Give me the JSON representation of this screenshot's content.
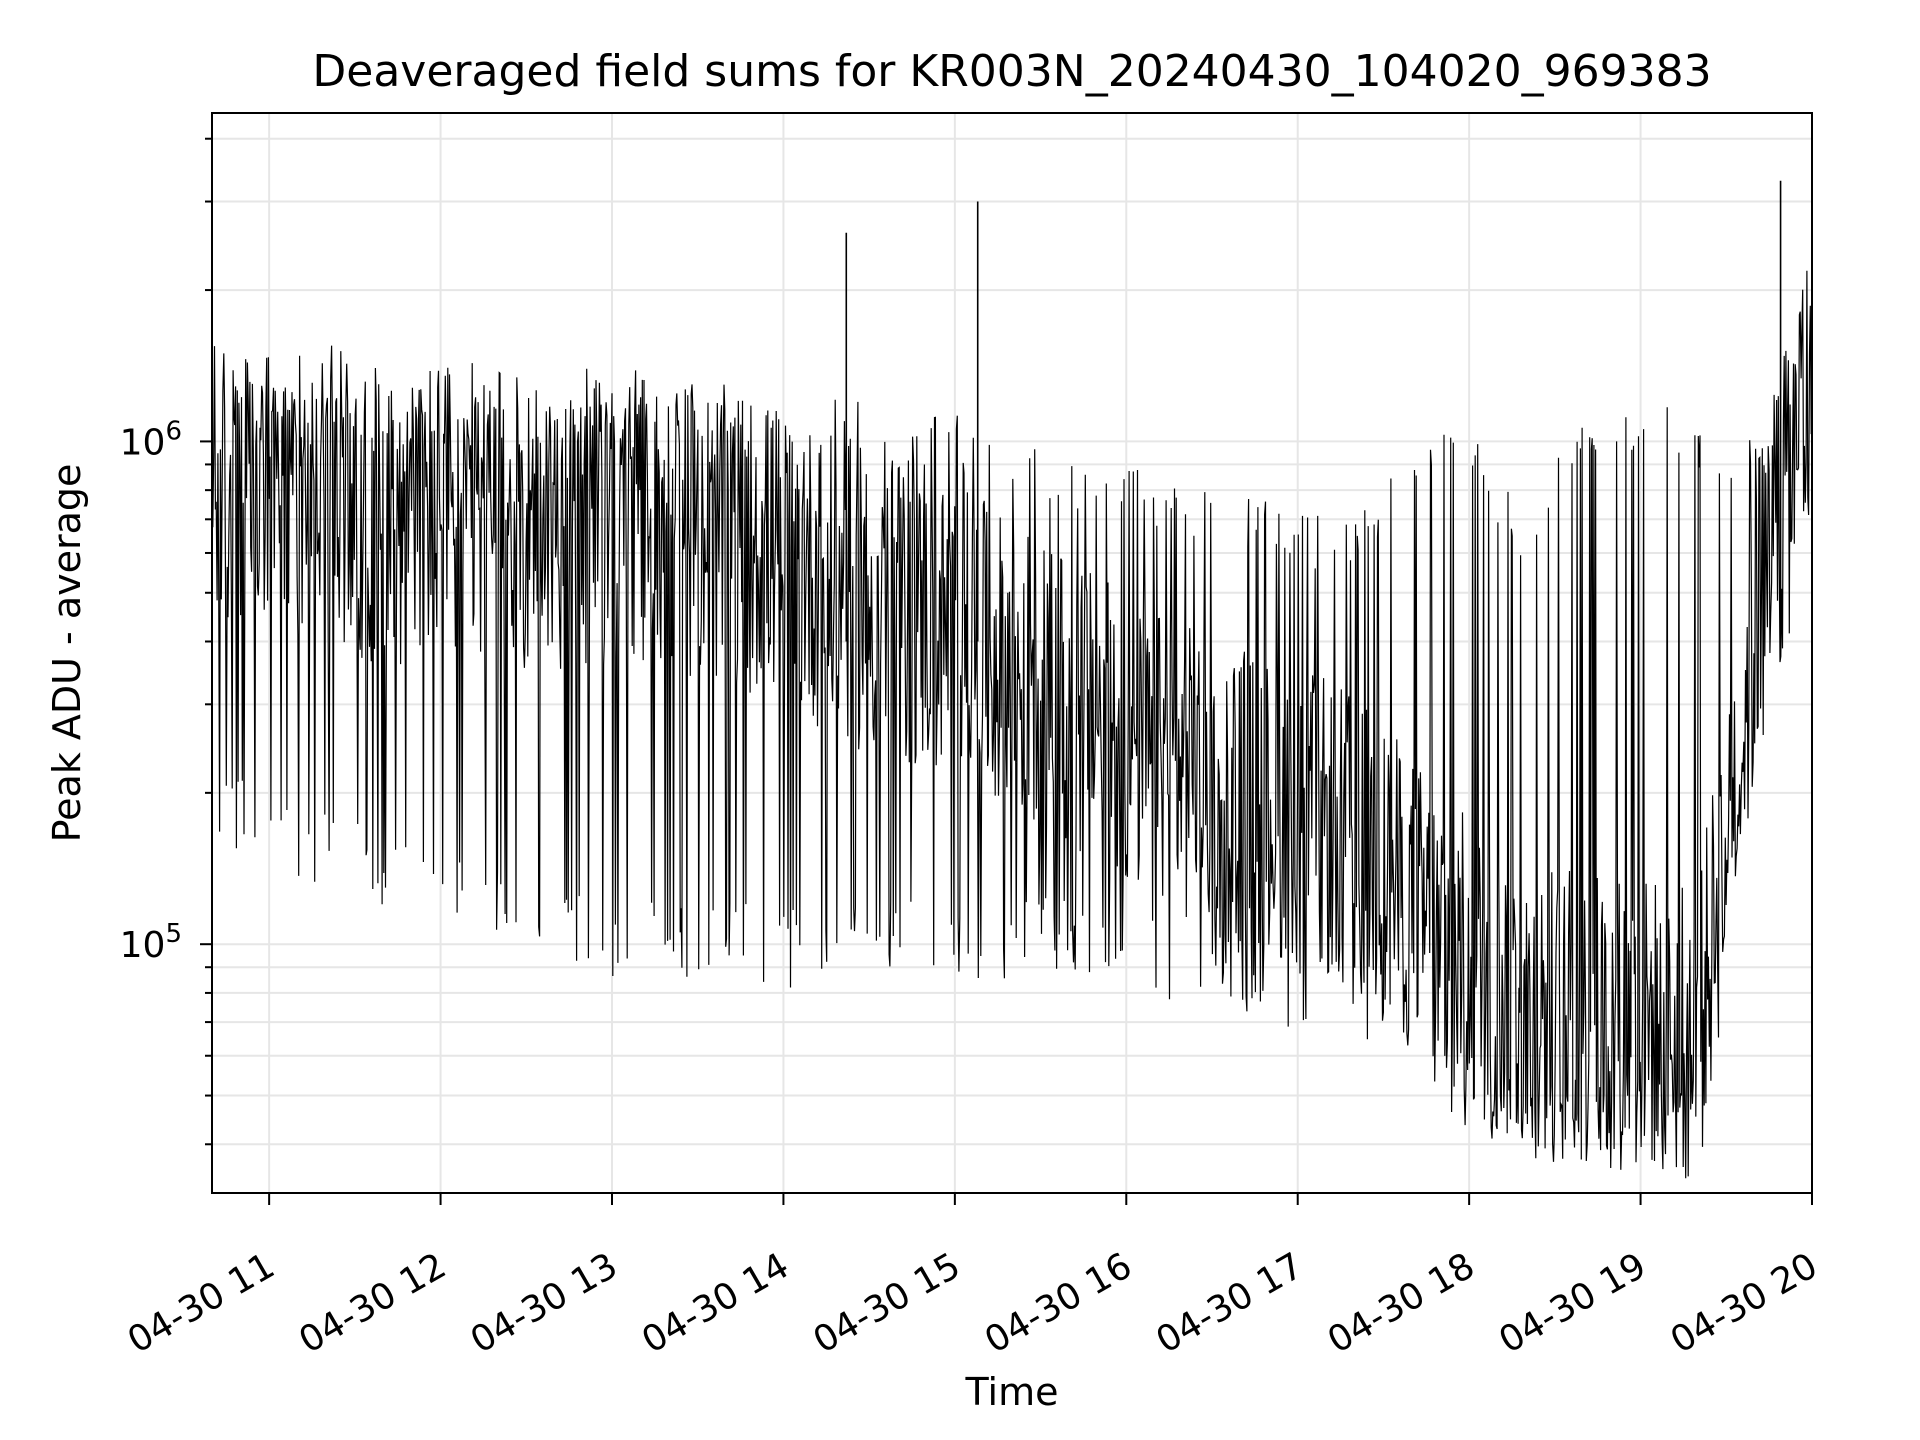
{
  "chart_data": {
    "type": "line",
    "title": "Deaveraged field sums for KR003N_20240430_104020_969383",
    "xlabel": "Time",
    "ylabel": "Peak ADU - average",
    "x_scale": "time",
    "y_scale": "log",
    "xlim": [
      "2024-04-30T10:40",
      "2024-04-30T20:00"
    ],
    "ylim": [
      32000,
      4500000
    ],
    "x_ticks": [
      {
        "t": "2024-04-30T11:00",
        "label": "04-30 11"
      },
      {
        "t": "2024-04-30T12:00",
        "label": "04-30 12"
      },
      {
        "t": "2024-04-30T13:00",
        "label": "04-30 13"
      },
      {
        "t": "2024-04-30T14:00",
        "label": "04-30 14"
      },
      {
        "t": "2024-04-30T15:00",
        "label": "04-30 15"
      },
      {
        "t": "2024-04-30T16:00",
        "label": "04-30 16"
      },
      {
        "t": "2024-04-30T17:00",
        "label": "04-30 17"
      },
      {
        "t": "2024-04-30T18:00",
        "label": "04-30 18"
      },
      {
        "t": "2024-04-30T19:00",
        "label": "04-30 19"
      },
      {
        "t": "2024-04-30T20:00",
        "label": "04-30 20"
      }
    ],
    "y_ticks": [
      {
        "value": 100000,
        "base": "10",
        "exp": "5"
      },
      {
        "value": 1000000,
        "base": "10",
        "exp": "6"
      }
    ],
    "grid": true,
    "line_color": "#000000",
    "series": [
      {
        "x": [
          "2024-04-30T10:40",
          "2024-04-30T11:00",
          "2024-04-30T11:20",
          "2024-04-30T11:40",
          "2024-04-30T12:00",
          "2024-04-30T12:20",
          "2024-04-30T12:40",
          "2024-04-30T13:00",
          "2024-04-30T13:20",
          "2024-04-30T13:40",
          "2024-04-30T14:00",
          "2024-04-30T14:20",
          "2024-04-30T14:40",
          "2024-04-30T15:00",
          "2024-04-30T15:20",
          "2024-04-30T15:40",
          "2024-04-30T16:00",
          "2024-04-30T16:20",
          "2024-04-30T16:40",
          "2024-04-30T17:00",
          "2024-04-30T17:20",
          "2024-04-30T17:40",
          "2024-04-30T18:00",
          "2024-04-30T18:20",
          "2024-04-30T18:40",
          "2024-04-30T19:00",
          "2024-04-30T19:20",
          "2024-04-30T19:40",
          "2024-04-30T20:00"
        ],
        "y_high": [
          1300000,
          1250000,
          1200000,
          1250000,
          1200000,
          1150000,
          1100000,
          1150000,
          1100000,
          1100000,
          1050000,
          1250000,
          1050000,
          1100000,
          950000,
          900000,
          850000,
          800000,
          750000,
          700000,
          650000,
          1050000,
          1050000,
          650000,
          1150000,
          1150000,
          1100000,
          950000,
          2300000
        ],
        "y_mid": [
          800000,
          750000,
          800000,
          700000,
          750000,
          700000,
          700000,
          700000,
          700000,
          650000,
          600000,
          500000,
          450000,
          420000,
          350000,
          300000,
          250000,
          220000,
          200000,
          180000,
          160000,
          120000,
          90000,
          75000,
          70000,
          70000,
          65000,
          400000,
          1300000
        ],
        "y_low": [
          180000,
          150000,
          140000,
          130000,
          120000,
          110000,
          100000,
          95000,
          95000,
          95000,
          90000,
          90000,
          95000,
          95000,
          95000,
          95000,
          90000,
          85000,
          80000,
          75000,
          70000,
          60000,
          45000,
          42000,
          40000,
          40000,
          42000,
          300000,
          950000
        ]
      }
    ],
    "spikes": [
      {
        "t": "2024-04-30T14:22",
        "value": 2600000
      },
      {
        "t": "2024-04-30T15:08",
        "value": 3000000
      },
      {
        "t": "2024-04-30T19:49",
        "value": 3300000
      }
    ]
  }
}
